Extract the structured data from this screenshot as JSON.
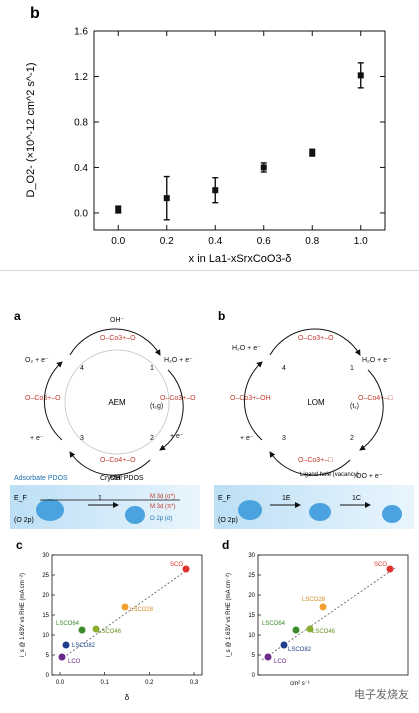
{
  "top_chart": {
    "panel_label": "b",
    "ylabel": "D_O2- (×10^-12 cm^2 s^-1)",
    "xlabel": "x in La1-xSrxCoO3-δ",
    "x_ticks": [
      "0.0",
      "0.2",
      "0.4",
      "0.6",
      "0.8",
      "1.0"
    ],
    "y_ticks": [
      "0.0",
      "0.4",
      "0.8",
      "1.2",
      "1.6"
    ]
  },
  "mechanisms": {
    "a": {
      "label": "a",
      "center": "AEM",
      "states": [
        "O–Co3+–O",
        "O–Co3+–O",
        "O–Co4+–O",
        "O–Co3+–O",
        "O–Co4+–O"
      ],
      "steps": [
        "1",
        "2",
        "3",
        "4"
      ],
      "species": [
        "OH⁻",
        "H₂O + e⁻",
        "OH⁻",
        "+ e⁻",
        "OH⁻",
        "+ e⁻",
        "O₂ + e⁻",
        "(t₂g)"
      ],
      "pdos": {
        "left": "Adsorbate PDOS",
        "right": "Crystal PDOS",
        "ef": "E_F",
        "o2p": "(O 2p)",
        "levels": [
          "M 3d (σ*)",
          "M 3d (π*)",
          "O 2p (σ)"
        ],
        "arrow": "1"
      }
    },
    "b": {
      "label": "b",
      "center": "LOM",
      "states": [
        "O–Co3+–O",
        "O–Co3+–O",
        "O–Co4+–□",
        "O–Co3+–OH",
        "O–Co3+–□"
      ],
      "steps": [
        "1",
        "2",
        "3",
        "4"
      ],
      "species": [
        "H₂O + e⁻",
        "OH⁻",
        "H₂O + e⁻",
        "OO + e⁻",
        "OH⁻",
        "+ e⁻",
        "(t₁)"
      ],
      "pdos": {
        "ef": "E_F",
        "o2p": "(O 2p)",
        "note": "Ligand hole (vacancy)",
        "arrow1": "1E",
        "arrow2": "1C"
      }
    }
  },
  "scatter": {
    "c": {
      "label": "c",
      "ylabel": "i_s @ 1.63V vs RHE (mA cm⁻²)",
      "xlabel": "δ",
      "x_ticks": [
        "0.0",
        "0.1",
        "0.2",
        "0.3"
      ],
      "y_ticks": [
        "0",
        "5",
        "10",
        "15",
        "20",
        "25",
        "30"
      ],
      "points": [
        "SCO",
        "LSCO28",
        "LSCO64",
        "LSCO46",
        "LSCO82",
        "LCO"
      ]
    },
    "d": {
      "label": "d",
      "ylabel": "i_s @ 1.63V vs RHE (mA cm⁻²)",
      "xlabel": "cm² s⁻¹",
      "y_ticks": [
        "0",
        "5",
        "10",
        "15",
        "20",
        "25",
        "30"
      ],
      "points": [
        "SCO",
        "LSCO28",
        "LSCO64",
        "LSCO46",
        "LSCO82",
        "LCO"
      ]
    }
  },
  "watermark": "电子发烧友",
  "chart_data": {
    "type": "scatter",
    "title": "",
    "xlabel": "x in La1-xSrxCoO3-δ",
    "ylabel": "D_O2- (×10^-12 cm^2 s^-1)",
    "xlim": [
      -0.1,
      1.1
    ],
    "ylim": [
      -0.15,
      1.6
    ],
    "x": [
      0.0,
      0.2,
      0.4,
      0.6,
      0.8,
      1.0
    ],
    "y": [
      0.03,
      0.13,
      0.2,
      0.4,
      0.53,
      1.21
    ],
    "yerr": [
      0.03,
      0.19,
      0.11,
      0.04,
      0.03,
      0.11
    ],
    "grid": false,
    "colors": {
      "marker": "#111111"
    }
  }
}
